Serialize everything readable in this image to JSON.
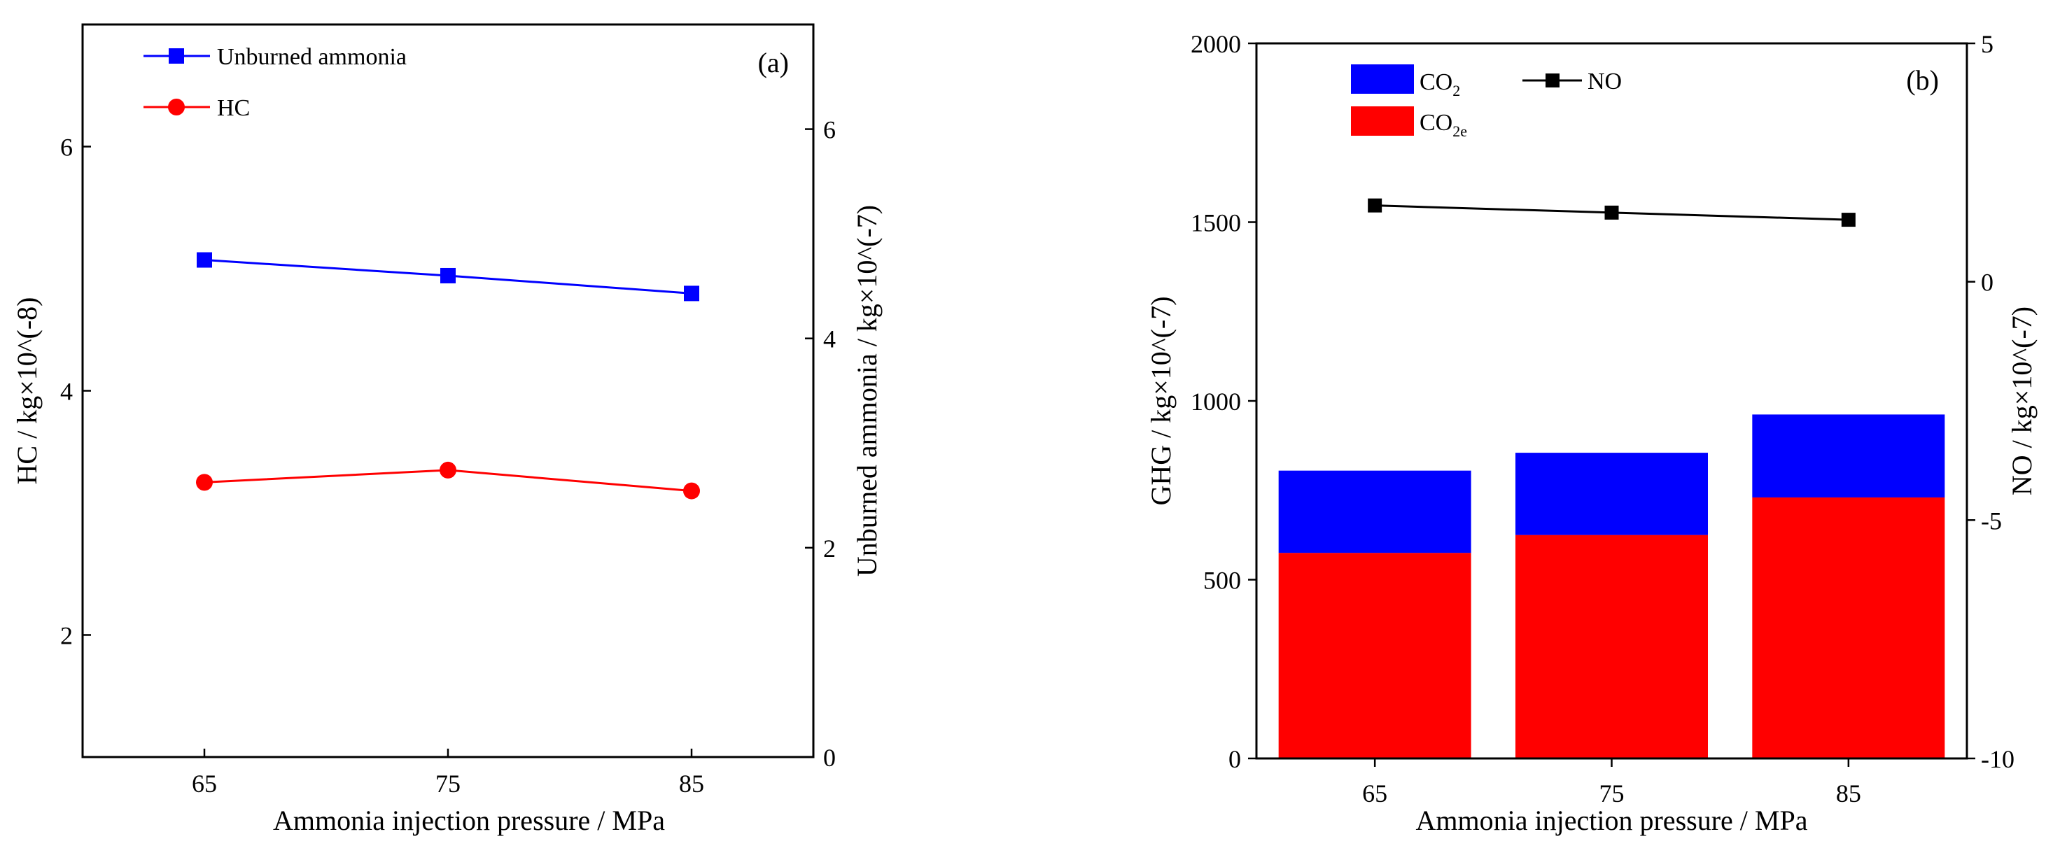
{
  "chart_data": [
    {
      "type": "line",
      "panel_label": "(a)",
      "xlabel": "Ammonia injection pressure / MPa",
      "x_categories": [
        "65",
        "75",
        "85"
      ],
      "x": [
        65,
        75,
        85
      ],
      "xlim": [
        60,
        90
      ],
      "y_left": {
        "label": "HC / kg×10^(-8)",
        "lim": [
          1,
          7
        ],
        "ticks": [
          2,
          4,
          6
        ],
        "tick_labels": [
          "2",
          "4",
          "6"
        ]
      },
      "y_right": {
        "label": "Unburned ammonia / kg×10^(-7)",
        "lim": [
          0,
          7
        ],
        "ticks": [
          0,
          2,
          4,
          6
        ],
        "tick_labels": [
          "0",
          "2",
          "4",
          "6"
        ]
      },
      "series": [
        {
          "name": "Unburned ammonia",
          "axis": "right",
          "marker": "square",
          "color": "#0000ff",
          "values": [
            4.75,
            4.6,
            4.43
          ]
        },
        {
          "name": "HC",
          "axis": "left",
          "marker": "circle",
          "color": "#ff0000",
          "values": [
            3.25,
            3.35,
            3.18
          ]
        }
      ],
      "legend": [
        "Unburned ammonia",
        "HC"
      ],
      "legend_position": "top-left"
    },
    {
      "type": "bar",
      "panel_label": "(b)",
      "xlabel": "Ammonia injection pressure / MPa",
      "categories": [
        "65",
        "75",
        "85"
      ],
      "y_left": {
        "label": "GHG / kg×10^(-7)",
        "lim": [
          0,
          2000
        ],
        "ticks": [
          0,
          500,
          1000,
          1500,
          2000
        ],
        "tick_labels": [
          "0",
          "500",
          "1000",
          "1500",
          "2000"
        ]
      },
      "y_right": {
        "label": "NO / kg×10^(-7)",
        "lim": [
          -10,
          5
        ],
        "ticks": [
          -10,
          -5,
          0,
          5
        ],
        "tick_labels": [
          "-10",
          "-5",
          "0",
          "5"
        ]
      },
      "stacked_series": [
        {
          "name": "CO2e",
          "legend_main": "CO",
          "legend_sub": "2e",
          "color": "#ff0000",
          "values": [
            575,
            625,
            730
          ]
        },
        {
          "name": "CO2",
          "legend_main": "CO",
          "legend_sub": "2",
          "color": "#0000ff",
          "values": [
            230,
            230,
            232
          ]
        }
      ],
      "line_series": [
        {
          "name": "NO",
          "axis": "right",
          "marker": "square",
          "color": "#000000",
          "values": [
            1.6,
            1.45,
            1.3
          ]
        }
      ],
      "legend_position": "top"
    }
  ]
}
